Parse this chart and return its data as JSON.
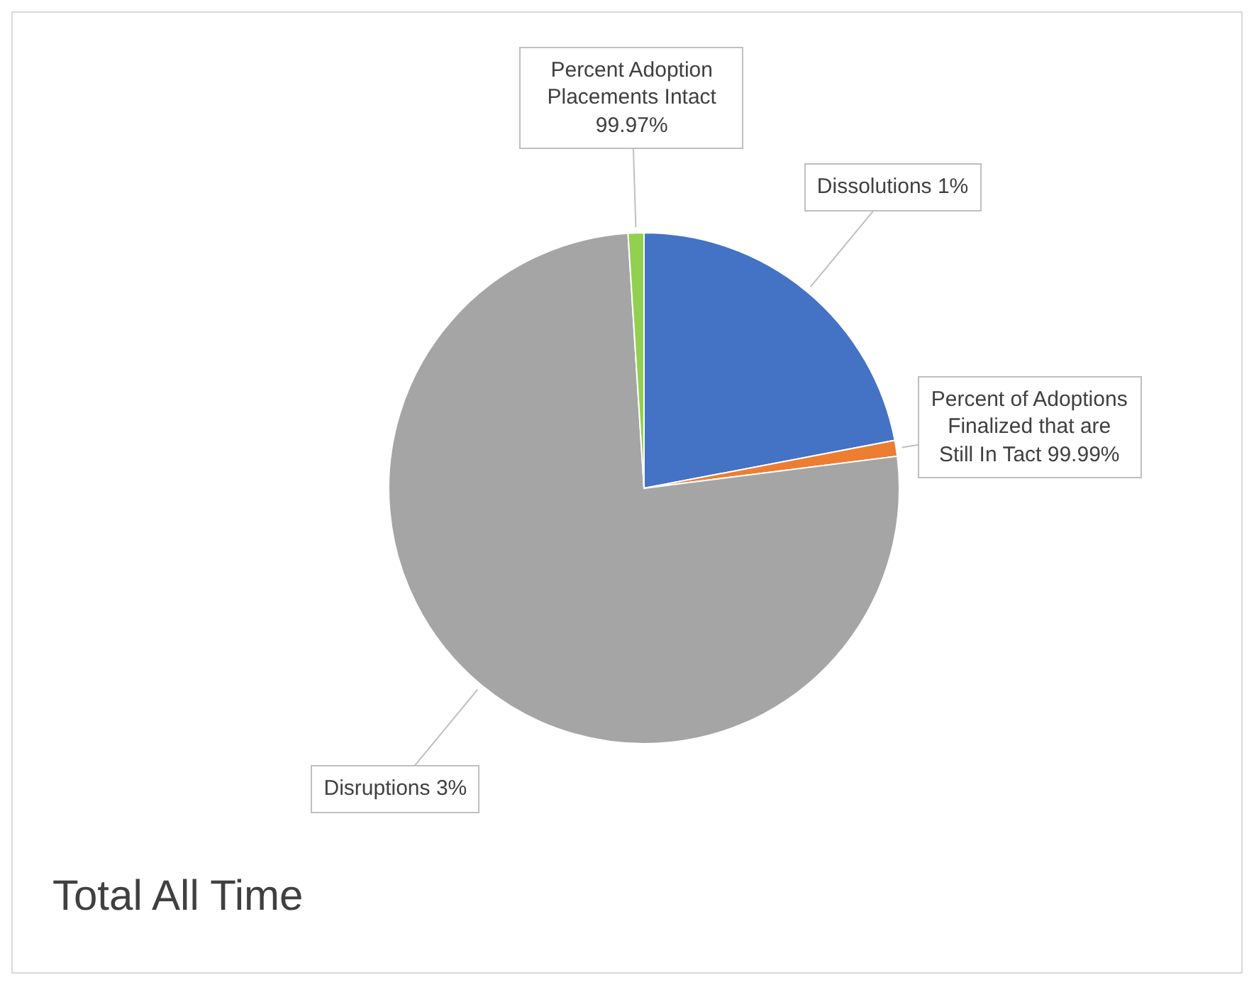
{
  "chart_data": {
    "type": "pie",
    "title": "Total All Time",
    "categories": [
      "Dissolutions 1%",
      "Percent of Adoptions Finalized that are Still In Tact 99.99%",
      "Disruptions 3%",
      "Percent Adoption Placements Intact 99.97%"
    ],
    "values": [
      22,
      1,
      76,
      1
    ],
    "colors": [
      "#4472c4",
      "#ed7d31",
      "#a5a5a5",
      "#92d050"
    ],
    "legend": false
  }
}
